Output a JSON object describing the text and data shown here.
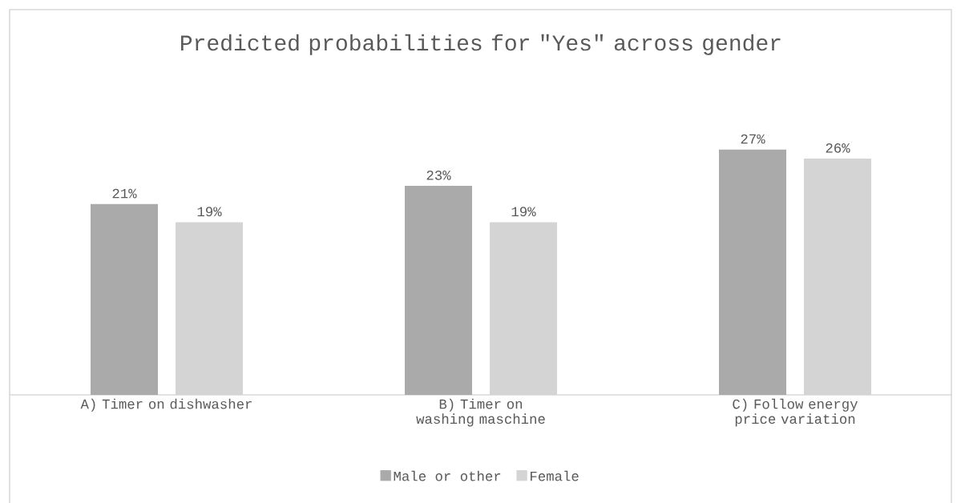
{
  "chart_data": {
    "type": "bar",
    "title": "Predicted probabilities for \"Yes\" across gender",
    "categories": [
      "A) Timer on dishwasher",
      "B) Timer on washing maschine",
      "C) Follow energy price variation"
    ],
    "series": [
      {
        "name": "Male or other",
        "color": "#aaaaaa",
        "values": [
          21,
          23,
          27
        ],
        "value_labels": [
          "21%",
          "23%",
          "27%"
        ]
      },
      {
        "name": "Female",
        "color": "#d4d4d4",
        "values": [
          19,
          19,
          26
        ],
        "value_labels": [
          "19%",
          "19%",
          "26%"
        ]
      }
    ],
    "legend": "bottom"
  }
}
